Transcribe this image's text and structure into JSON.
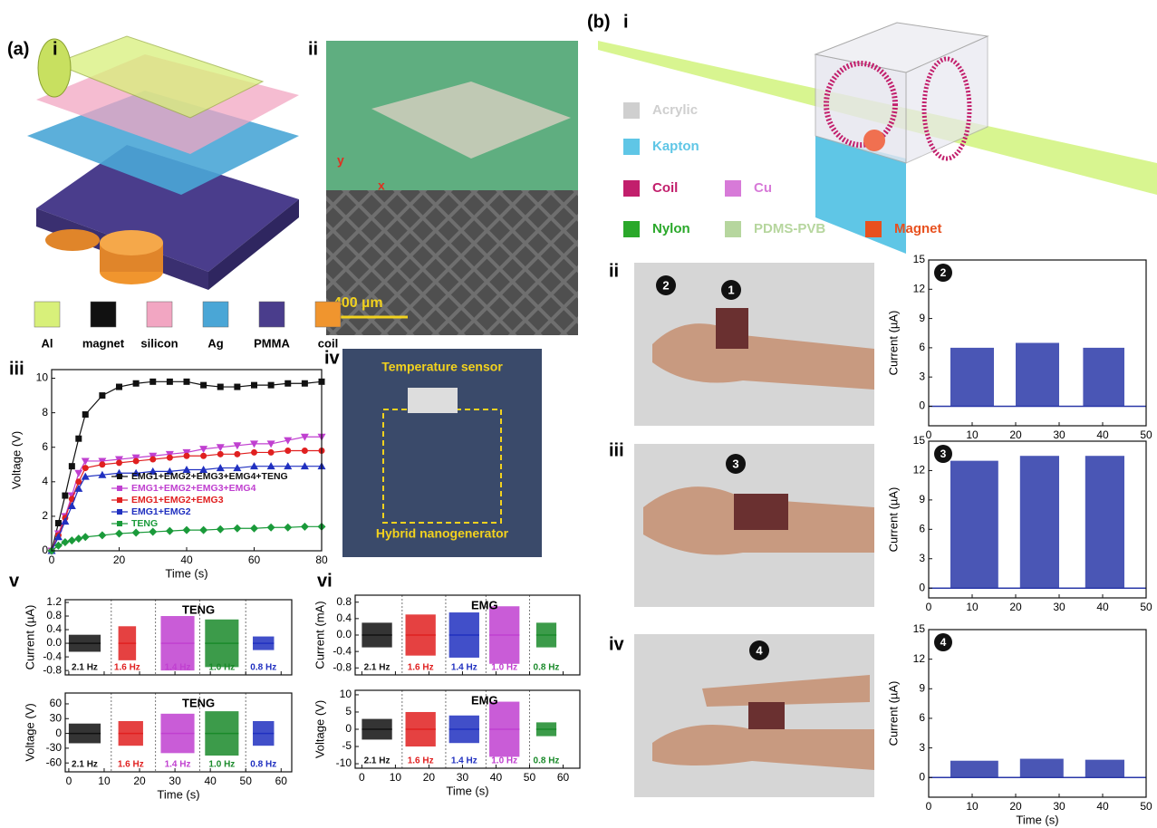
{
  "panel_labels": {
    "a": "(a)",
    "a_i": "i",
    "a_ii": "ii",
    "a_iii": "iii",
    "a_iv": "iv",
    "a_v": "v",
    "a_vi": "vi",
    "b": "(b)",
    "b_i": "i",
    "b_ii": "ii",
    "b_iii": "iii",
    "b_iv": "iv"
  },
  "materials_a": [
    {
      "name": "Al",
      "color": "#d8f07a"
    },
    {
      "name": "magnet",
      "color": "#111111"
    },
    {
      "name": "silicon",
      "color": "#f2a6c2"
    },
    {
      "name": "Ag",
      "color": "#4aa6d6"
    },
    {
      "name": "PMMA",
      "color": "#4a3d8c"
    },
    {
      "name": "coil",
      "color": "#f0952e"
    }
  ],
  "materials_b": [
    {
      "name": "Acrylic",
      "color": "#cfcfcf"
    },
    {
      "name": "Kapton",
      "color": "#5fc6e6"
    },
    {
      "name": "Coil",
      "color": "#c21f6c"
    },
    {
      "name": "Cu",
      "color": "#d77ad8"
    },
    {
      "name": "Nylon",
      "color": "#2aa82a"
    },
    {
      "name": "PDMS-PVB",
      "color": "#b6d69e"
    },
    {
      "name": "Magnet",
      "color": "#e8501e"
    }
  ],
  "photo_texts": {
    "axis_y": "y",
    "axis_x": "x",
    "scale_bar": "400 µm",
    "temperature_sensor": "Temperature sensor",
    "hybrid": "Hybrid nanogenerator"
  },
  "motion_markers": [
    "1",
    "2",
    "3",
    "4"
  ],
  "chart_data": [
    {
      "type": "line",
      "xlabel": "Time (s)",
      "ylabel": "Voltage (V)",
      "xlim": [
        0,
        80
      ],
      "ylim": [
        0,
        10.5
      ],
      "xticks": [
        0,
        20,
        40,
        60,
        80
      ],
      "yticks": [
        0,
        2,
        4,
        6,
        8,
        10
      ],
      "legend": "center right",
      "x": [
        0,
        2,
        4,
        6,
        8,
        10,
        15,
        20,
        25,
        30,
        35,
        40,
        45,
        50,
        55,
        60,
        65,
        70,
        75,
        80
      ],
      "series": [
        {
          "name": "EMG1+EMG2+EMG3+EMG4+TENG",
          "color": "#111111",
          "marker": "square",
          "values": [
            0,
            1.6,
            3.2,
            4.9,
            6.5,
            7.9,
            9.0,
            9.5,
            9.7,
            9.8,
            9.8,
            9.8,
            9.6,
            9.5,
            9.5,
            9.6,
            9.6,
            9.7,
            9.7,
            9.8
          ]
        },
        {
          "name": "EMG1+EMG2+EMG3+EMG4",
          "color": "#c040d0",
          "marker": "triangle-down",
          "values": [
            0,
            1.0,
            2.0,
            3.2,
            4.5,
            5.2,
            5.2,
            5.3,
            5.4,
            5.5,
            5.6,
            5.7,
            5.9,
            6.0,
            6.1,
            6.2,
            6.2,
            6.4,
            6.6,
            6.6
          ]
        },
        {
          "name": "EMG1+EMG2+EMG3",
          "color": "#e02020",
          "marker": "circle",
          "values": [
            0,
            0.9,
            1.9,
            3.0,
            4.0,
            4.8,
            5.0,
            5.1,
            5.2,
            5.3,
            5.4,
            5.5,
            5.5,
            5.6,
            5.6,
            5.7,
            5.7,
            5.8,
            5.8,
            5.8
          ]
        },
        {
          "name": "EMG1+EMG2",
          "color": "#2030c0",
          "marker": "triangle-up",
          "values": [
            0,
            0.8,
            1.7,
            2.6,
            3.6,
            4.3,
            4.4,
            4.5,
            4.5,
            4.6,
            4.6,
            4.7,
            4.7,
            4.8,
            4.8,
            4.9,
            4.9,
            4.9,
            4.9,
            4.9
          ]
        },
        {
          "name": "TENG",
          "color": "#1a9a3a",
          "marker": "diamond",
          "values": [
            0,
            0.3,
            0.5,
            0.6,
            0.7,
            0.8,
            0.9,
            1.0,
            1.05,
            1.1,
            1.15,
            1.2,
            1.2,
            1.25,
            1.3,
            1.3,
            1.35,
            1.35,
            1.4,
            1.4
          ]
        }
      ]
    },
    {
      "type": "signal",
      "annotation": "TENG",
      "ylabel": "Current (µA)",
      "xlim": [
        -1,
        63
      ],
      "ylim": [
        -0.93,
        1.28
      ],
      "xticks": [
        0,
        10,
        20,
        30,
        40,
        50,
        60
      ],
      "xtick_labels": false,
      "yticks": [
        -0.8,
        -0.4,
        {
          "value": 0,
          "label": "0.0"
        },
        0.4,
        0.8,
        1.2
      ],
      "separators": [
        12,
        24.5,
        37,
        50
      ],
      "segments": [
        {
          "label": "2.1 Hz",
          "color": "#111111",
          "x": [
            0,
            9
          ],
          "amplitude": 0.25
        },
        {
          "label": "1.6 Hz",
          "color": "#e02020",
          "x": [
            14,
            19
          ],
          "amplitude": 0.5
        },
        {
          "label": "1.4 Hz",
          "color": "#c040d0",
          "x": [
            26,
            35.5
          ],
          "amplitude": 0.8
        },
        {
          "label": "1.0 Hz",
          "color": "#1a8a2a",
          "x": [
            38.5,
            48
          ],
          "amplitude": 0.7
        },
        {
          "label": "0.8 Hz",
          "color": "#2030c0",
          "x": [
            52,
            58
          ],
          "amplitude": 0.2
        }
      ]
    },
    {
      "type": "signal",
      "annotation": "TENG",
      "xlabel": "Time (s)",
      "ylabel": "Voltage (V)",
      "xlim": [
        -1,
        63
      ],
      "ylim": [
        -78,
        82
      ],
      "xticks": [
        0,
        10,
        20,
        30,
        40,
        50,
        60
      ],
      "yticks": [
        -60,
        -30,
        0,
        30,
        60
      ],
      "separators": [
        12,
        24.5,
        37,
        50
      ],
      "segments": [
        {
          "label": "2.1 Hz",
          "color": "#111111",
          "x": [
            0,
            9
          ],
          "amplitude": 20
        },
        {
          "label": "1.6 Hz",
          "color": "#e02020",
          "x": [
            14,
            21
          ],
          "amplitude": 25
        },
        {
          "label": "1.4 Hz",
          "color": "#c040d0",
          "x": [
            26,
            35.5
          ],
          "amplitude": 40
        },
        {
          "label": "1.0 Hz",
          "color": "#1a8a2a",
          "x": [
            38.5,
            48
          ],
          "amplitude": 45
        },
        {
          "label": "0.8 Hz",
          "color": "#2030c0",
          "x": [
            52,
            58
          ],
          "amplitude": 25
        }
      ]
    },
    {
      "type": "signal",
      "annotation": "EMG",
      "ylabel": "Current (mA)",
      "xlim": [
        -2,
        65
      ],
      "ylim": [
        -0.97,
        0.97
      ],
      "xticks": [
        0,
        10,
        20,
        30,
        40,
        50,
        60
      ],
      "xtick_labels": false,
      "yticks": [
        -0.8,
        -0.4,
        {
          "value": 0,
          "label": "0.0"
        },
        0.4,
        0.8
      ],
      "separators": [
        12,
        25,
        37,
        50
      ],
      "segments": [
        {
          "label": "2.1 Hz",
          "color": "#111111",
          "x": [
            0,
            9
          ],
          "amplitude": 0.3
        },
        {
          "label": "1.6 Hz",
          "color": "#e02020",
          "x": [
            13,
            22
          ],
          "amplitude": 0.5
        },
        {
          "label": "1.4 Hz",
          "color": "#2030c0",
          "x": [
            26,
            35
          ],
          "amplitude": 0.55
        },
        {
          "label": "1.0 Hz",
          "color": "#c040d0",
          "x": [
            38,
            47
          ],
          "amplitude": 0.7
        },
        {
          "label": "0.8 Hz",
          "color": "#1a8a2a",
          "x": [
            52,
            58
          ],
          "amplitude": 0.3
        }
      ]
    },
    {
      "type": "signal",
      "annotation": "EMG",
      "xlabel": "Time (s)",
      "ylabel": "Voltage (V)",
      "xlim": [
        -2,
        65
      ],
      "ylim": [
        -11.3,
        11.3
      ],
      "xticks": [
        0,
        10,
        20,
        30,
        40,
        50,
        60
      ],
      "yticks": [
        -10,
        -5,
        0,
        5,
        10
      ],
      "separators": [
        12,
        25,
        37,
        50
      ],
      "segments": [
        {
          "label": "2.1 Hz",
          "color": "#111111",
          "x": [
            0,
            9
          ],
          "amplitude": 3
        },
        {
          "label": "1.6 Hz",
          "color": "#e02020",
          "x": [
            13,
            22
          ],
          "amplitude": 5
        },
        {
          "label": "1.4 Hz",
          "color": "#2030c0",
          "x": [
            26,
            35
          ],
          "amplitude": 4
        },
        {
          "label": "1.0 Hz",
          "color": "#c040d0",
          "x": [
            38,
            47
          ],
          "amplitude": 8
        },
        {
          "label": "0.8 Hz",
          "color": "#1a8a2a",
          "x": [
            52,
            58
          ],
          "amplitude": 2
        }
      ]
    },
    {
      "type": "burst",
      "annotation": "2",
      "color": "#2a38a8",
      "ylabel": "Current (µA)",
      "xlim": [
        0,
        50
      ],
      "ylim": [
        -2,
        15
      ],
      "xticks": [
        0,
        10,
        20,
        30,
        40,
        50
      ],
      "yticks": [
        0,
        3,
        6,
        9,
        12,
        15
      ],
      "bursts": [
        {
          "x": [
            5,
            15
          ],
          "value": 6
        },
        {
          "x": [
            20,
            30
          ],
          "value": 6.5
        },
        {
          "x": [
            35.5,
            45
          ],
          "value": 6
        }
      ]
    },
    {
      "type": "burst",
      "annotation": "3",
      "color": "#2a38a8",
      "ylabel": "Current (µA)",
      "xlim": [
        0,
        50
      ],
      "ylim": [
        -1,
        15
      ],
      "xticks": [
        0,
        10,
        20,
        30,
        40,
        50
      ],
      "yticks": [
        0,
        3,
        6,
        9,
        12,
        15
      ],
      "bursts": [
        {
          "x": [
            5,
            16
          ],
          "value": 13
        },
        {
          "x": [
            21,
            30
          ],
          "value": 13.5
        },
        {
          "x": [
            36,
            45
          ],
          "value": 13.5
        }
      ]
    },
    {
      "type": "burst",
      "annotation": "4",
      "color": "#2a38a8",
      "xlabel": "Time (s)",
      "ylabel": "Current (µA)",
      "xlim": [
        0,
        50
      ],
      "ylim": [
        -2,
        15
      ],
      "xticks": [
        0,
        10,
        20,
        30,
        40,
        50
      ],
      "yticks": [
        0,
        3,
        6,
        9,
        12,
        15
      ],
      "bursts": [
        {
          "x": [
            5,
            16
          ],
          "value": 1.7
        },
        {
          "x": [
            21,
            31
          ],
          "value": 1.9
        },
        {
          "x": [
            36,
            45
          ],
          "value": 1.8
        }
      ]
    }
  ]
}
